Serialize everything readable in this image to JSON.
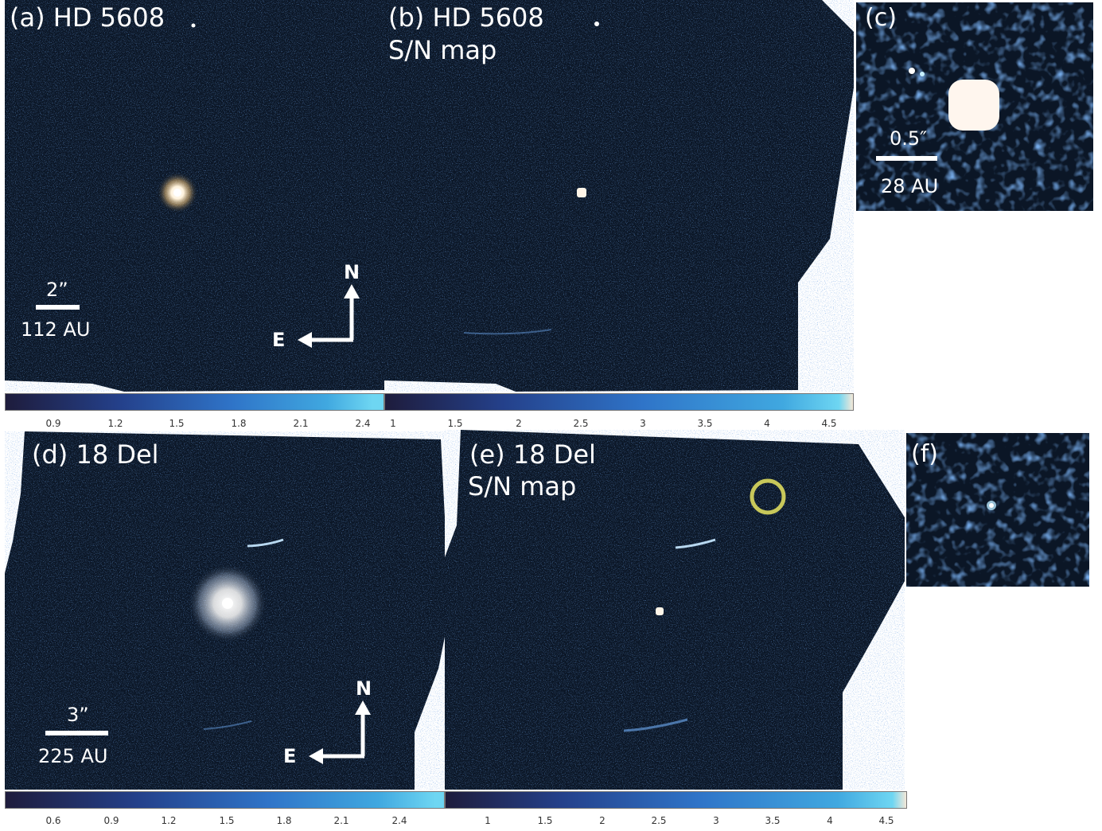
{
  "panels": {
    "a": {
      "label": "(a) HD 5608",
      "scale_arcsec": "2”",
      "scale_au": "112 AU",
      "compass_n": "N",
      "compass_e": "E"
    },
    "b": {
      "label": "(b) HD 5608",
      "sublabel": "S/N map"
    },
    "c": {
      "label": "(c)",
      "scale_arcsec": "0.5″",
      "scale_au": "28 AU"
    },
    "d": {
      "label": "(d) 18 Del",
      "scale_arcsec": "3”",
      "scale_au": "225 AU",
      "compass_n": "N",
      "compass_e": "E"
    },
    "e": {
      "label": "(e) 18 Del",
      "sublabel": "S/N map"
    },
    "f": {
      "label": "(f)"
    }
  },
  "colorbars": {
    "a": {
      "ticks": [
        "0.9",
        "1.2",
        "1.5",
        "1.8",
        "2.1",
        "2.4"
      ]
    },
    "b": {
      "ticks": [
        "1",
        "1.5",
        "2",
        "2.5",
        "3",
        "3.5",
        "4",
        "4.5"
      ]
    },
    "d": {
      "ticks": [
        "0.6",
        "0.9",
        "1.2",
        "1.5",
        "1.8",
        "2.1",
        "2.4"
      ]
    },
    "e": {
      "ticks": [
        "1",
        "1.5",
        "2",
        "2.5",
        "3",
        "3.5",
        "4",
        "4.5"
      ]
    }
  },
  "colors": {
    "background_dark": "#0b1626",
    "colormap_start": "#1f1f3f",
    "colormap_mid": "#2f6fc0",
    "colormap_end": "#5fd0f0",
    "highlight_circle": "#c8c85a"
  }
}
